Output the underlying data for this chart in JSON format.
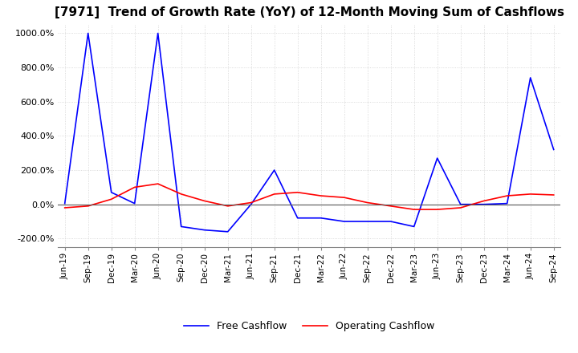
{
  "title": "[7971]  Trend of Growth Rate (YoY) of 12-Month Moving Sum of Cashflows",
  "title_fontsize": 11,
  "ylim": [
    -250,
    1050
  ],
  "yticks": [
    -200,
    0,
    200,
    400,
    600,
    800,
    1000
  ],
  "ytick_labels": [
    "-200.0%",
    "0.0%",
    "200.0%",
    "400.0%",
    "600.0%",
    "800.0%",
    "1000.0%"
  ],
  "x_labels": [
    "Jun-19",
    "Sep-19",
    "Dec-19",
    "Mar-20",
    "Jun-20",
    "Sep-20",
    "Dec-20",
    "Mar-21",
    "Jun-21",
    "Sep-21",
    "Dec-21",
    "Mar-22",
    "Jun-22",
    "Sep-22",
    "Dec-22",
    "Mar-23",
    "Jun-23",
    "Sep-23",
    "Dec-23",
    "Mar-24",
    "Jun-24",
    "Sep-24"
  ],
  "operating_cashflow": [
    -20,
    -10,
    30,
    100,
    120,
    60,
    20,
    -10,
    10,
    60,
    70,
    50,
    40,
    10,
    -10,
    -30,
    -30,
    -20,
    20,
    50,
    60,
    55
  ],
  "free_cashflow": [
    5,
    1000,
    70,
    5,
    1000,
    -130,
    -150,
    -160,
    0,
    200,
    -80,
    -80,
    -100,
    -100,
    -100,
    -130,
    270,
    0,
    0,
    5,
    740,
    320
  ],
  "op_color": "#ff0000",
  "fc_color": "#0000ff",
  "legend_labels": [
    "Operating Cashflow",
    "Free Cashflow"
  ],
  "grid_color": "#d0d0d0",
  "grid_style": ":",
  "background_color": "#ffffff"
}
